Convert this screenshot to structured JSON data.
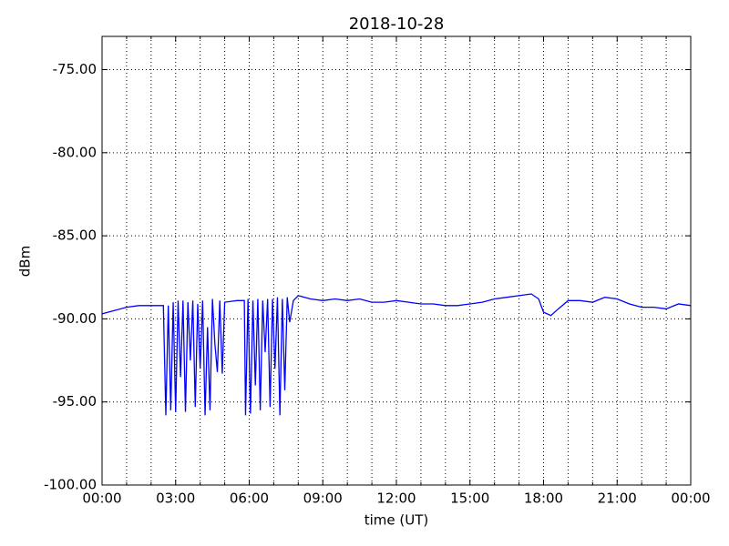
{
  "chart_data": {
    "type": "line",
    "title": "2018-10-28",
    "x_label": "time (UT)",
    "y_label": "dBm",
    "xlim": [
      0,
      24
    ],
    "ylim": [
      -100,
      -73
    ],
    "xticks": [
      {
        "value": 0,
        "label": "00:00"
      },
      {
        "value": 3,
        "label": "03:00"
      },
      {
        "value": 6,
        "label": "06:00"
      },
      {
        "value": 9,
        "label": "09:00"
      },
      {
        "value": 12,
        "label": "12:00"
      },
      {
        "value": 15,
        "label": "15:00"
      },
      {
        "value": 18,
        "label": "18:00"
      },
      {
        "value": 21,
        "label": "21:00"
      },
      {
        "value": 24,
        "label": "00:00"
      }
    ],
    "xminorticks": [
      1,
      2,
      4,
      5,
      7,
      8,
      10,
      11,
      13,
      14,
      16,
      17,
      19,
      20,
      22,
      23
    ],
    "yticks": [
      {
        "value": -100,
        "label": "-100.00"
      },
      {
        "value": -95,
        "label": "-95.00"
      },
      {
        "value": -90,
        "label": "-90.00"
      },
      {
        "value": -85,
        "label": "-85.00"
      },
      {
        "value": -80,
        "label": "-80.00"
      },
      {
        "value": -75,
        "label": "-75.00"
      }
    ],
    "grid": true,
    "series": [
      {
        "color": "#0000ff",
        "x": [
          0,
          0.5,
          1,
          1.5,
          2,
          2.5,
          2.6,
          2.7,
          2.8,
          2.9,
          3.0,
          3.1,
          3.2,
          3.3,
          3.4,
          3.5,
          3.6,
          3.7,
          3.8,
          3.9,
          4.0,
          4.1,
          4.2,
          4.3,
          4.4,
          4.5,
          4.6,
          4.7,
          4.8,
          4.9,
          5.0,
          5.5,
          5.8,
          5.85,
          5.95,
          6.05,
          6.15,
          6.25,
          6.35,
          6.45,
          6.55,
          6.65,
          6.75,
          6.85,
          6.95,
          7.05,
          7.15,
          7.25,
          7.35,
          7.45,
          7.55,
          7.65,
          7.8,
          8.0,
          8.5,
          9,
          9.5,
          10,
          10.5,
          11,
          11.5,
          12,
          12.5,
          13,
          13.5,
          14,
          14.5,
          15,
          15.5,
          16,
          16.5,
          17,
          17.5,
          17.8,
          18.0,
          18.3,
          18.6,
          19,
          19.5,
          20,
          20.5,
          21,
          21.5,
          22,
          22.5,
          23,
          23.5,
          24
        ],
        "values": [
          -89.7,
          -89.5,
          -89.3,
          -89.2,
          -89.2,
          -89.2,
          -95.8,
          -89.2,
          -95.5,
          -89.0,
          -95.6,
          -88.9,
          -93.5,
          -88.9,
          -95.6,
          -89.0,
          -92.5,
          -88.9,
          -95.3,
          -89.1,
          -93.0,
          -88.9,
          -95.8,
          -90.5,
          -95.5,
          -88.8,
          -91.5,
          -93.2,
          -88.9,
          -93.3,
          -89.0,
          -88.9,
          -88.9,
          -95.8,
          -88.8,
          -95.7,
          -88.9,
          -94.0,
          -88.8,
          -95.5,
          -88.9,
          -92.0,
          -88.8,
          -95.3,
          -88.8,
          -93.0,
          -88.7,
          -95.8,
          -88.8,
          -94.3,
          -88.7,
          -90.2,
          -88.9,
          -88.6,
          -88.8,
          -88.9,
          -88.8,
          -88.9,
          -88.8,
          -89.0,
          -89.0,
          -88.9,
          -89.0,
          -89.1,
          -89.1,
          -89.2,
          -89.2,
          -89.1,
          -89.0,
          -88.8,
          -88.7,
          -88.6,
          -88.5,
          -88.8,
          -89.6,
          -89.8,
          -89.4,
          -88.9,
          -88.9,
          -89.0,
          -88.7,
          -88.8,
          -89.1,
          -89.3,
          -89.3,
          -89.4,
          -89.1,
          -89.2
        ]
      }
    ]
  }
}
